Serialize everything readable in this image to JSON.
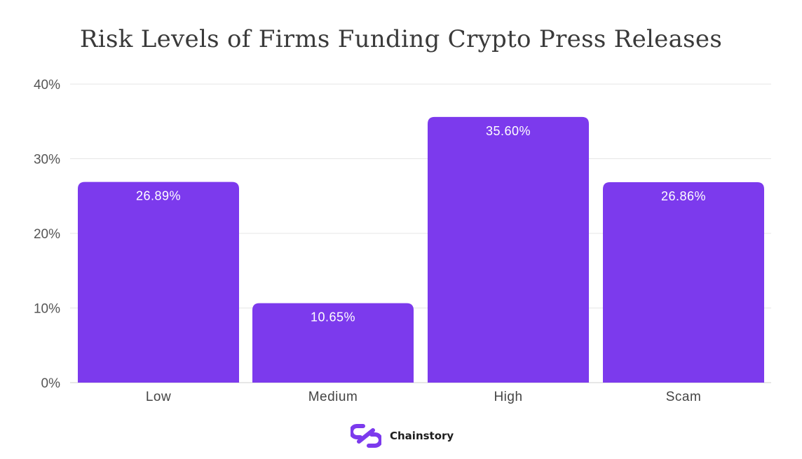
{
  "chart_data": {
    "type": "bar",
    "title": "Risk Levels of Firms Funding Crypto Press Releases",
    "categories": [
      "Low",
      "Medium",
      "High",
      "Scam"
    ],
    "values": [
      26.89,
      10.65,
      35.6,
      26.86
    ],
    "value_labels": [
      "26.89%",
      "10.65%",
      "35.60%",
      "26.86%"
    ],
    "ylim": [
      0,
      40
    ],
    "yticks": [
      0,
      10,
      20,
      30,
      40
    ],
    "ytick_labels": [
      "0%",
      "10%",
      "20%",
      "30%",
      "40%"
    ],
    "xlabel": "",
    "ylabel": "",
    "grid": true,
    "bar_color": "#7c3aed",
    "grid_color": "#e6e6e6"
  },
  "brand": {
    "name": "Chainstory",
    "logo_icon": "chainstory-logo-icon",
    "color": "#7c3aed"
  }
}
